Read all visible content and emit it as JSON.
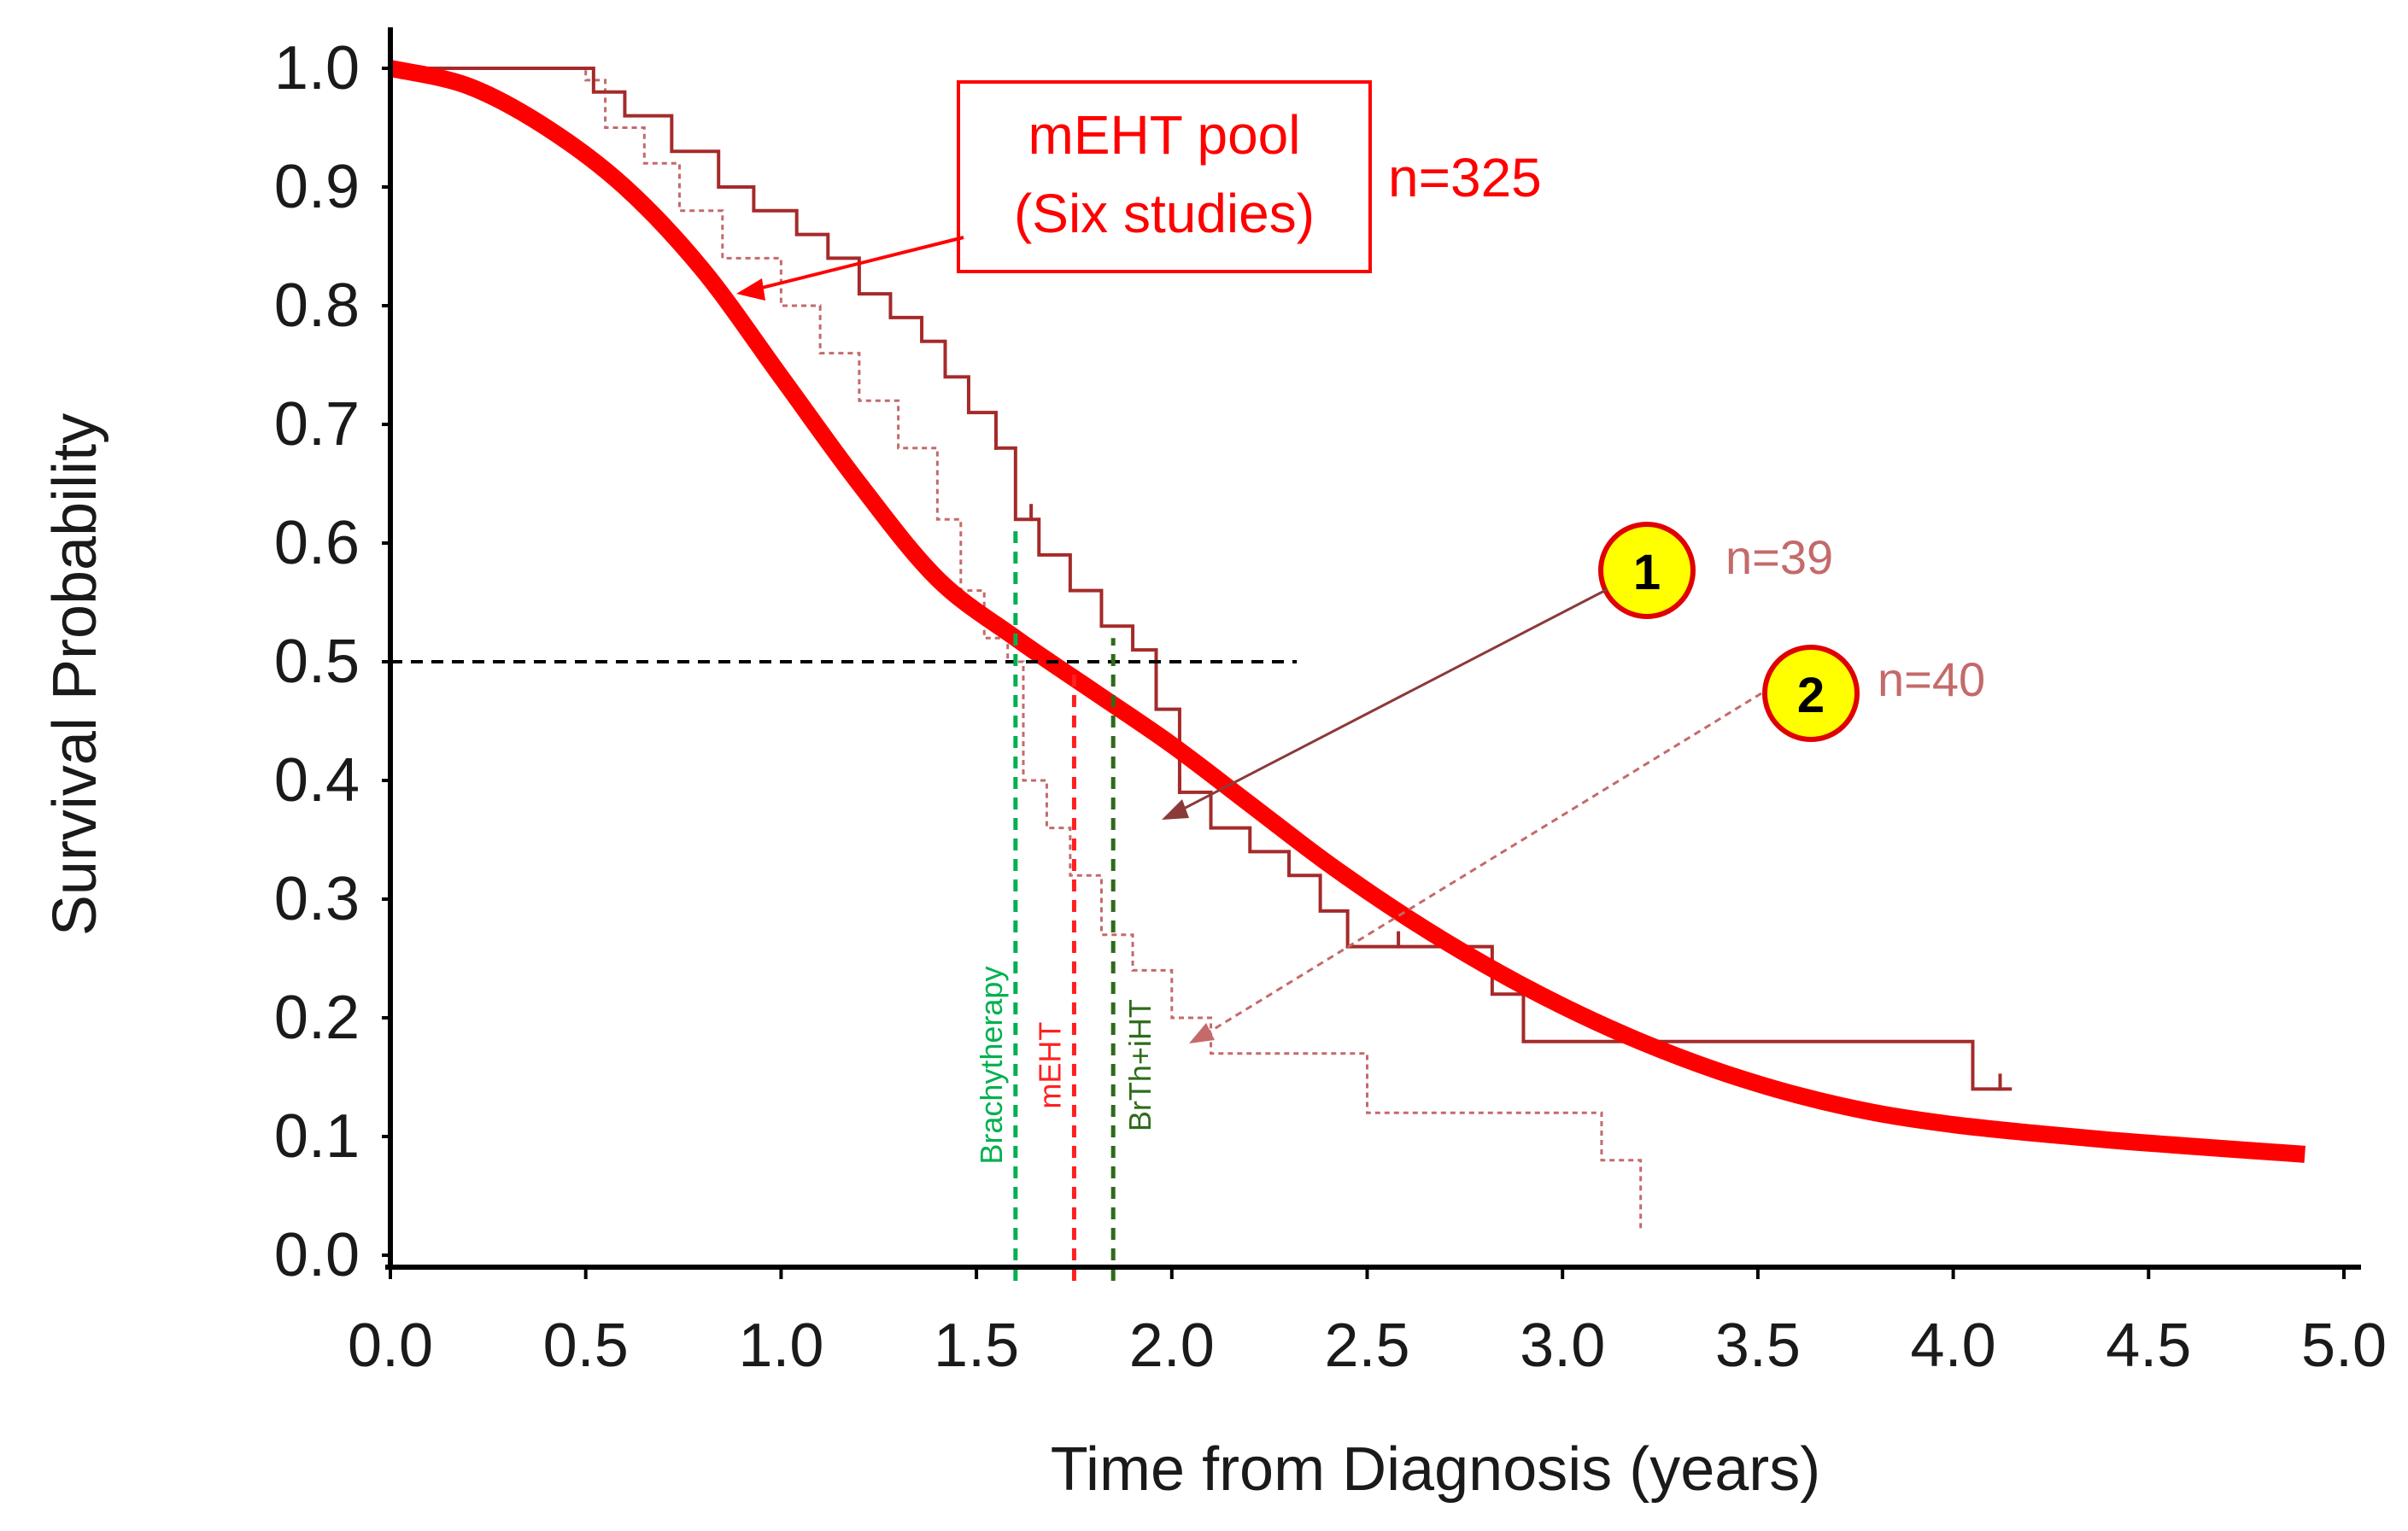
{
  "chart_data": {
    "type": "line",
    "title": "",
    "xlabel": "Time from Diagnosis  (years)",
    "ylabel": "Survival Probability",
    "xlim": [
      0,
      5
    ],
    "ylim": [
      0,
      1
    ],
    "x_ticks": [
      "0.0",
      "0.5",
      "1.0",
      "1.5",
      "2.0",
      "2.5",
      "3.0",
      "3.5",
      "4.0",
      "4.5",
      "5.0"
    ],
    "y_ticks": [
      "0.0",
      "0.1",
      "0.2",
      "0.3",
      "0.4",
      "0.5",
      "0.6",
      "0.7",
      "0.8",
      "0.9",
      "1.0"
    ],
    "grid": false,
    "colors": {
      "pool": "#ff0000",
      "study1": "#a52a2a",
      "study2": "#c46a6a",
      "brachytherapy": "#00b050",
      "meht": "#ff2020",
      "brth_iht": "#2e6b1a",
      "median": "#000000",
      "badge_fill": "#ffff00",
      "badge_stroke": "#e00000"
    },
    "series": [
      {
        "id": "pool",
        "x": [
          0.0,
          0.2,
          0.4,
          0.6,
          0.8,
          1.0,
          1.2,
          1.4,
          1.6,
          1.8,
          2.0,
          2.2,
          2.4,
          2.6,
          2.8,
          3.0,
          3.2,
          3.4,
          3.6,
          3.8,
          4.0,
          4.2,
          4.4,
          4.6,
          4.9
        ],
        "y": [
          1.0,
          0.985,
          0.95,
          0.9,
          0.83,
          0.74,
          0.65,
          0.57,
          0.52,
          0.475,
          0.43,
          0.38,
          0.33,
          0.285,
          0.245,
          0.21,
          0.18,
          0.155,
          0.135,
          0.12,
          0.11,
          0.103,
          0.097,
          0.092,
          0.085
        ]
      },
      {
        "id": "study1",
        "x": [
          0.0,
          0.52,
          0.6,
          0.72,
          0.84,
          0.93,
          1.04,
          1.12,
          1.2,
          1.28,
          1.36,
          1.42,
          1.48,
          1.55,
          1.6,
          1.66,
          1.74,
          1.82,
          1.9,
          1.96,
          2.02,
          2.1,
          2.2,
          2.3,
          2.38,
          2.45,
          2.58,
          2.82,
          2.9,
          3.2,
          3.6,
          4.05,
          4.15
        ],
        "y": [
          1.0,
          0.98,
          0.96,
          0.93,
          0.9,
          0.88,
          0.86,
          0.84,
          0.81,
          0.79,
          0.77,
          0.74,
          0.71,
          0.68,
          0.62,
          0.59,
          0.56,
          0.53,
          0.51,
          0.46,
          0.39,
          0.36,
          0.34,
          0.32,
          0.29,
          0.26,
          0.26,
          0.22,
          0.18,
          0.18,
          0.18,
          0.14,
          0.14
        ]
      },
      {
        "id": "study2",
        "x": [
          0.0,
          0.5,
          0.55,
          0.65,
          0.74,
          0.85,
          1.0,
          1.1,
          1.2,
          1.3,
          1.4,
          1.46,
          1.52,
          1.58,
          1.62,
          1.68,
          1.74,
          1.82,
          1.9,
          2.0,
          2.1,
          2.3,
          2.5,
          2.7,
          2.8,
          3.0,
          3.1,
          3.2
        ],
        "y": [
          1.0,
          0.99,
          0.95,
          0.92,
          0.88,
          0.84,
          0.8,
          0.76,
          0.72,
          0.68,
          0.62,
          0.56,
          0.52,
          0.5,
          0.4,
          0.36,
          0.32,
          0.27,
          0.24,
          0.2,
          0.17,
          0.17,
          0.12,
          0.12,
          0.12,
          0.12,
          0.08,
          0.02
        ]
      }
    ],
    "reference_lines": [
      {
        "id": "median",
        "axis": "y",
        "value": 0.5,
        "x_end": 2.32
      },
      {
        "id": "brachytherapy",
        "axis": "x",
        "value": 1.6,
        "y_end": 0.61,
        "label": "Brachytherapy"
      },
      {
        "id": "meht",
        "axis": "x",
        "value": 1.75,
        "y_end": 0.49,
        "label": "mEHT"
      },
      {
        "id": "brth_iht",
        "axis": "x",
        "value": 1.85,
        "y_end": 0.52,
        "label": "BrTh+iHT"
      }
    ],
    "annotations": {
      "pool_box_line1": "mEHT pool",
      "pool_box_line2": "(Six studies)",
      "pool_n": "n=325",
      "badge1": "1",
      "badge1_n": "n=39",
      "badge2": "2",
      "badge2_n": "n=40"
    }
  }
}
